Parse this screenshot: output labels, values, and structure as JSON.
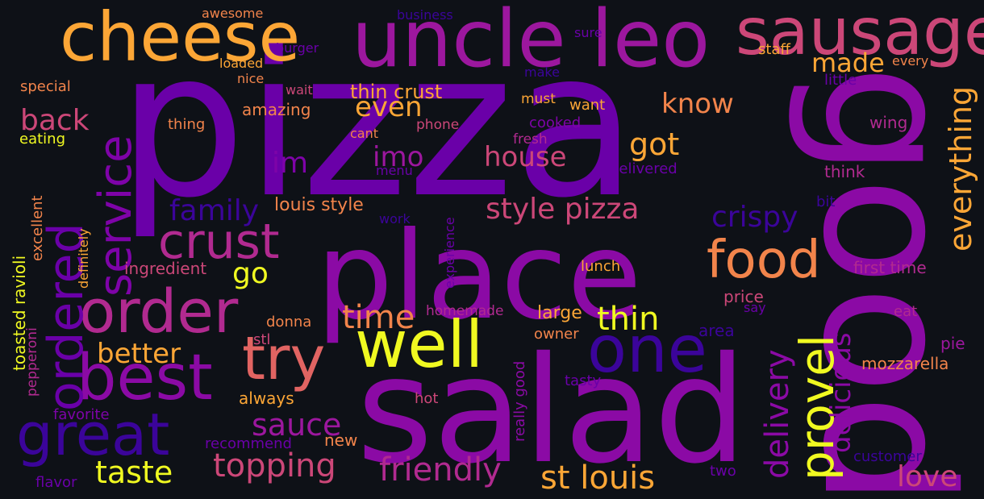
{
  "background": "#0e1117",
  "palette": [
    "#6a00a8",
    "#8b0aa5",
    "#b12a90",
    "#cc4778",
    "#e16462",
    "#f2844b",
    "#fca636",
    "#f0f921",
    "#3b049a"
  ],
  "words": [
    {
      "text": "pizza",
      "color": "#6a00a8"
    },
    {
      "text": "good",
      "color": "#8b0aa5"
    },
    {
      "text": "salad",
      "color": "#8b0aa5"
    },
    {
      "text": "place",
      "color": "#8b0aa5"
    },
    {
      "text": "uncle leo",
      "color": "#9c179e"
    },
    {
      "text": "cheese",
      "color": "#fca636"
    },
    {
      "text": "sausage",
      "color": "#cc4778"
    },
    {
      "text": "well",
      "color": "#f0f921"
    },
    {
      "text": "one",
      "color": "#3b049a"
    },
    {
      "text": "best",
      "color": "#8b0aa5"
    },
    {
      "text": "order",
      "color": "#b12a90"
    },
    {
      "text": "try",
      "color": "#e16462"
    },
    {
      "text": "great",
      "color": "#3b049a"
    },
    {
      "text": "crust",
      "color": "#b12a90"
    },
    {
      "text": "food",
      "color": "#f2844b"
    },
    {
      "text": "ordered",
      "color": "#6a00a8"
    },
    {
      "text": "service",
      "color": "#7e03a8"
    },
    {
      "text": "provel",
      "color": "#f0f921"
    },
    {
      "text": "topping",
      "color": "#cc4778"
    },
    {
      "text": "friendly",
      "color": "#b12a90"
    },
    {
      "text": "st louis",
      "color": "#fca636"
    },
    {
      "text": "taste",
      "color": "#f0f921"
    },
    {
      "text": "style pizza",
      "color": "#cc4778"
    },
    {
      "text": "delivery",
      "color": "#8b0aa5"
    },
    {
      "text": "delicious",
      "color": "#8b0aa5"
    },
    {
      "text": "everything",
      "color": "#fca636"
    },
    {
      "text": "thin",
      "color": "#f0f921"
    },
    {
      "text": "time",
      "color": "#f2844b"
    },
    {
      "text": "sauce",
      "color": "#9c179e"
    },
    {
      "text": "better",
      "color": "#fca636"
    },
    {
      "text": "family",
      "color": "#3b049a"
    },
    {
      "text": "crispy",
      "color": "#3b049a"
    },
    {
      "text": "house",
      "color": "#cc4778"
    },
    {
      "text": "got",
      "color": "#fca636"
    },
    {
      "text": "know",
      "color": "#f2844b"
    },
    {
      "text": "even",
      "color": "#fca636"
    },
    {
      "text": "made",
      "color": "#fca636"
    },
    {
      "text": "back",
      "color": "#cc4778"
    },
    {
      "text": "im",
      "color": "#7e03a8"
    },
    {
      "text": "imo",
      "color": "#9c179e"
    },
    {
      "text": "go",
      "color": "#f0f921"
    },
    {
      "text": "love",
      "color": "#cc4778"
    },
    {
      "text": "thin crust",
      "color": "#fca636"
    },
    {
      "text": "louis style",
      "color": "#f2844b"
    },
    {
      "text": "always",
      "color": "#fca636"
    },
    {
      "text": "new",
      "color": "#f2844b"
    },
    {
      "text": "large",
      "color": "#fca636"
    },
    {
      "text": "amazing",
      "color": "#f2844b"
    },
    {
      "text": "ingredient",
      "color": "#cc4778"
    },
    {
      "text": "mozzarella",
      "color": "#f2844b"
    },
    {
      "text": "first time",
      "color": "#b12a90"
    },
    {
      "text": "homemade",
      "color": "#b12a90"
    },
    {
      "text": "owner",
      "color": "#f2844b"
    },
    {
      "text": "price",
      "color": "#cc4778"
    },
    {
      "text": "donna",
      "color": "#f2844b"
    },
    {
      "text": "stl",
      "color": "#cc4778"
    },
    {
      "text": "hot",
      "color": "#cc4778"
    },
    {
      "text": "area",
      "color": "#3b049a"
    },
    {
      "text": "lunch",
      "color": "#fca636"
    },
    {
      "text": "recommend",
      "color": "#6a00a8"
    },
    {
      "text": "favorite",
      "color": "#7e03a8"
    },
    {
      "text": "flavor",
      "color": "#6a00a8"
    },
    {
      "text": "customer",
      "color": "#3b049a"
    },
    {
      "text": "two",
      "color": "#6a00a8"
    },
    {
      "text": "tasty",
      "color": "#6a00a8"
    },
    {
      "text": "eat",
      "color": "#b12a90"
    },
    {
      "text": "pie",
      "color": "#9c179e"
    },
    {
      "text": "say",
      "color": "#6a00a8"
    },
    {
      "text": "think",
      "color": "#b12a90"
    },
    {
      "text": "wing",
      "color": "#b12a90"
    },
    {
      "text": "bit",
      "color": "#3b049a"
    },
    {
      "text": "little",
      "color": "#6a00a8"
    },
    {
      "text": "every",
      "color": "#f2844b"
    },
    {
      "text": "staff",
      "color": "#fca636"
    },
    {
      "text": "sure",
      "color": "#6a00a8"
    },
    {
      "text": "business",
      "color": "#3b049a"
    },
    {
      "text": "burger",
      "color": "#6a00a8"
    },
    {
      "text": "awesome",
      "color": "#f2844b"
    },
    {
      "text": "loaded",
      "color": "#fca636"
    },
    {
      "text": "nice",
      "color": "#f2844b"
    },
    {
      "text": "wait",
      "color": "#cc4778"
    },
    {
      "text": "make",
      "color": "#3b049a"
    },
    {
      "text": "must",
      "color": "#fca636"
    },
    {
      "text": "want",
      "color": "#fca636"
    },
    {
      "text": "cooked",
      "color": "#7e03a8"
    },
    {
      "text": "fresh",
      "color": "#b12a90"
    },
    {
      "text": "phone",
      "color": "#cc4778"
    },
    {
      "text": "cant",
      "color": "#f2844b"
    },
    {
      "text": "menu",
      "color": "#6a00a8"
    },
    {
      "text": "delivered",
      "color": "#6a00a8"
    },
    {
      "text": "work",
      "color": "#3b049a"
    },
    {
      "text": "special",
      "color": "#f2844b"
    },
    {
      "text": "thing",
      "color": "#f2844b"
    },
    {
      "text": "eating",
      "color": "#f0f921"
    },
    {
      "text": "toasted ravioli",
      "color": "#f0f921"
    },
    {
      "text": "excellent",
      "color": "#f2844b"
    },
    {
      "text": "definitely",
      "color": "#fca636"
    },
    {
      "text": "pepperoni",
      "color": "#b12a90"
    },
    {
      "text": "experience",
      "color": "#6a00a8"
    },
    {
      "text": "really good",
      "color": "#8b0aa5"
    }
  ]
}
